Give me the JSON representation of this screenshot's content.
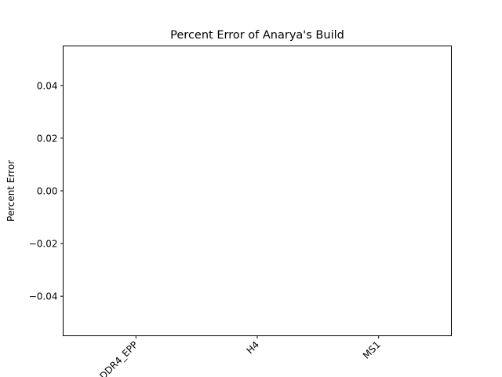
{
  "chart_data": {
    "type": "bar",
    "title": "Percent Error of Anarya's Build",
    "xlabel": "",
    "ylabel": "Percent Error",
    "categories": [
      "DDR4_EPP",
      "H4",
      "MS1"
    ],
    "values": [
      0,
      0,
      0
    ],
    "ylim": [
      -0.055,
      0.055
    ],
    "yticks": [
      {
        "value": 0.04,
        "label": "0.04"
      },
      {
        "value": 0.02,
        "label": "0.02"
      },
      {
        "value": 0.0,
        "label": "0.00"
      },
      {
        "value": -0.02,
        "label": "−0.02"
      },
      {
        "value": -0.04,
        "label": "−0.04"
      }
    ],
    "grid": false,
    "legend": "none",
    "bar_color": "#1f77b4",
    "frame_color": "#000000"
  }
}
